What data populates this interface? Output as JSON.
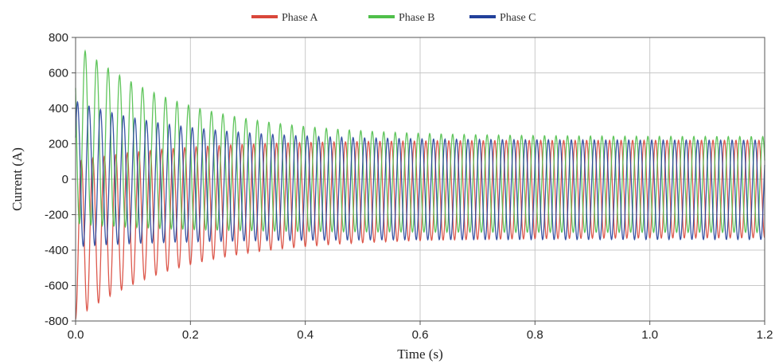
{
  "chart_data": {
    "type": "line",
    "xlabel": "Time (s)",
    "ylabel": "Current (A)",
    "xlim": [
      0,
      1.2
    ],
    "ylim": [
      -800,
      800
    ],
    "x_ticks": [
      "0.0",
      "0.2",
      "0.4",
      "0.6",
      "0.8",
      "1.0",
      "1.2"
    ],
    "y_ticks": [
      "800",
      "600",
      "400",
      "200",
      "0",
      "-200",
      "-400",
      "-600",
      "-800"
    ],
    "grid": true,
    "legend_position": "top-center",
    "frequency_hz": 50,
    "series": [
      {
        "name": "Phase A",
        "color": "#d9473a",
        "steady_max": 220,
        "steady_min": -330,
        "initial_max": 100,
        "initial_min": -790,
        "decay_time_constant_s": 0.18
      },
      {
        "name": "Phase B",
        "color": "#4fbf4a",
        "steady_max": 240,
        "steady_min": -300,
        "initial_max": 770,
        "initial_min": -250,
        "decay_time_constant_s": 0.18
      },
      {
        "name": "Phase C",
        "color": "#22409a",
        "steady_max": 220,
        "steady_min": -340,
        "initial_max": 440,
        "initial_min": -380,
        "decay_time_constant_s": 0.18
      }
    ]
  }
}
